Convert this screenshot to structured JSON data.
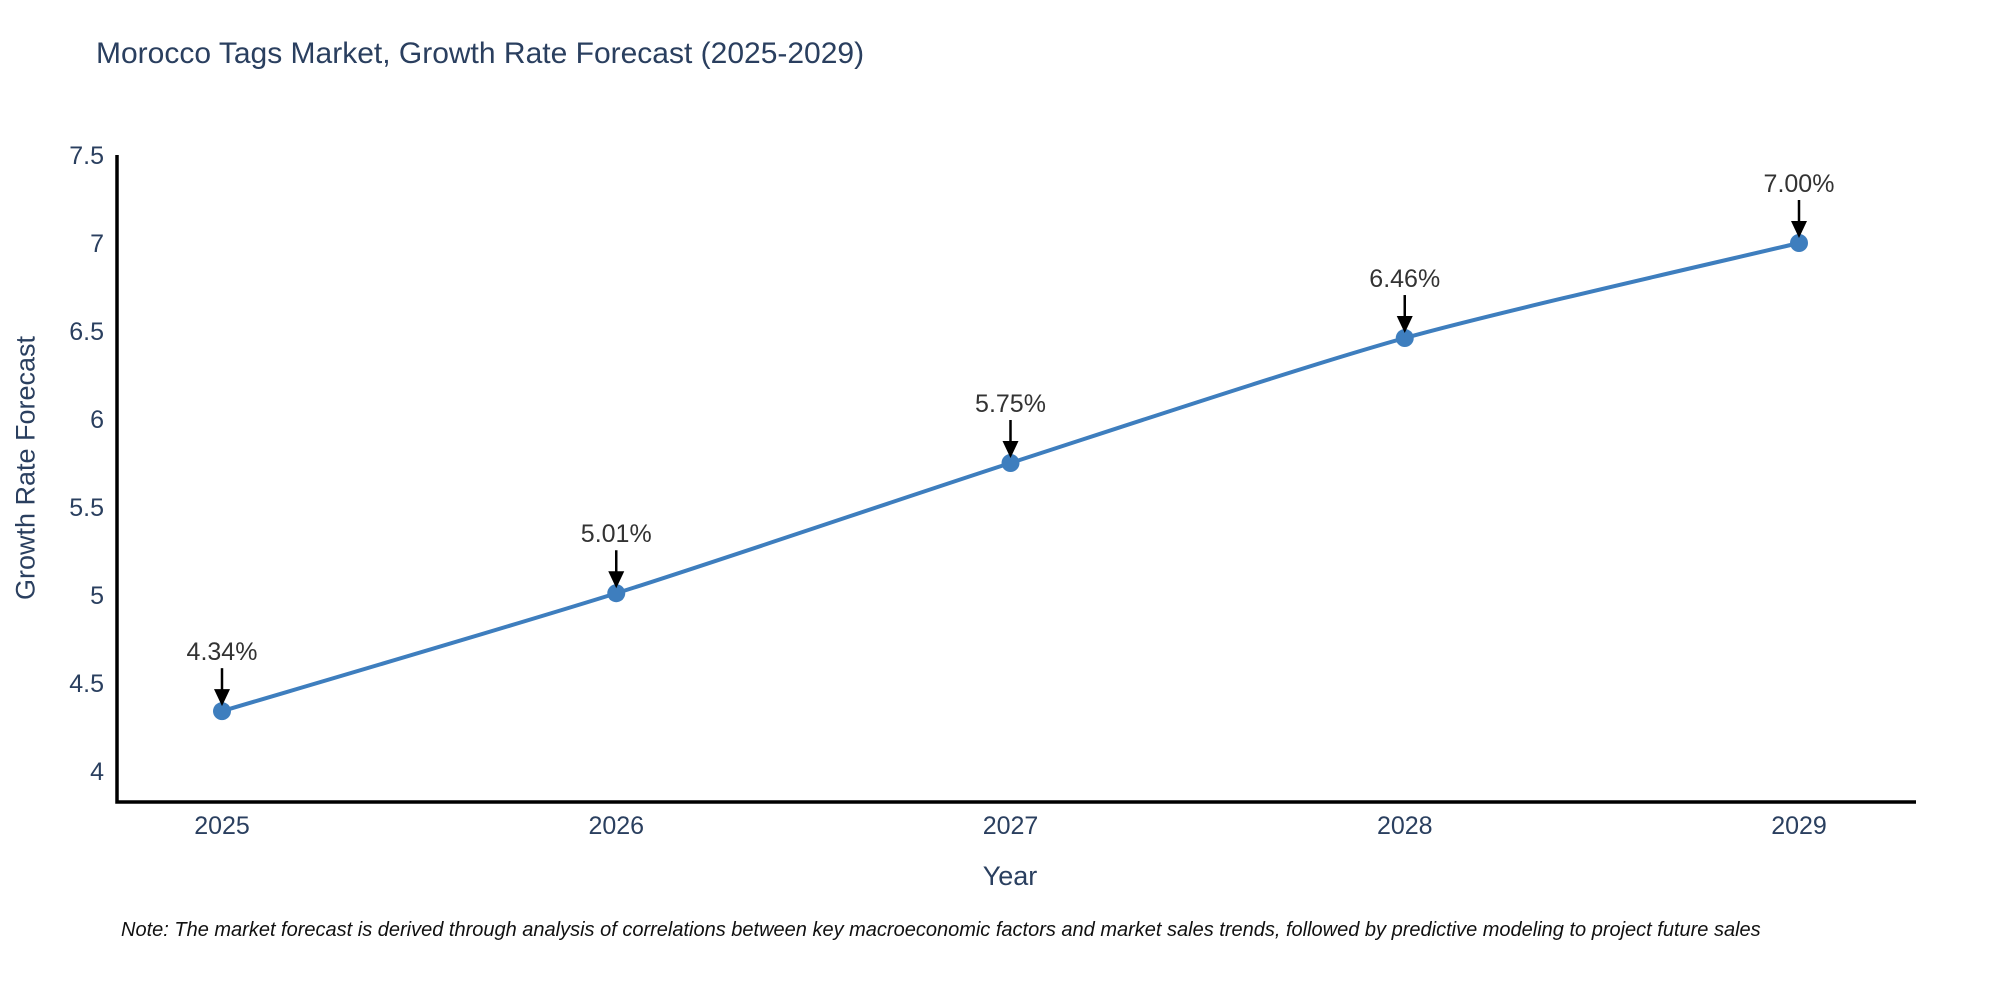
{
  "title": "Morocco Tags Market, Growth Rate Forecast (2025-2029)",
  "note": "Note: The market forecast is derived through analysis of correlations between key macroeconomic factors and market sales trends, followed by predictive modeling to project future sales",
  "chart_data": {
    "type": "line",
    "title": "Morocco Tags Market, Growth Rate Forecast (2025-2029)",
    "xlabel": "Year",
    "ylabel": "Growth Rate Forecast",
    "categories": [
      "2025",
      "2026",
      "2027",
      "2028",
      "2029"
    ],
    "values": [
      4.34,
      5.01,
      5.75,
      6.46,
      7.0
    ],
    "point_labels": [
      "4.34%",
      "5.01%",
      "5.75%",
      "6.46%",
      "7.00%"
    ],
    "ytick_labels": [
      "4",
      "4.5",
      "5",
      "5.5",
      "6",
      "6.5",
      "7",
      "7.5"
    ],
    "ytick_values": [
      4,
      4.5,
      5,
      5.5,
      6,
      6.5,
      7,
      7.5
    ],
    "ylim": [
      3.82,
      7.5
    ],
    "grid": false,
    "legend": "none",
    "annotations_style": "down-arrow",
    "line_color": "#3e7ebe",
    "marker_color": "#3e7ebe",
    "axis_color": "#000000",
    "tick_label_color": "#2a3f5f",
    "annotation_text_color": "#333333",
    "annotation_arrow_color": "#000000"
  }
}
